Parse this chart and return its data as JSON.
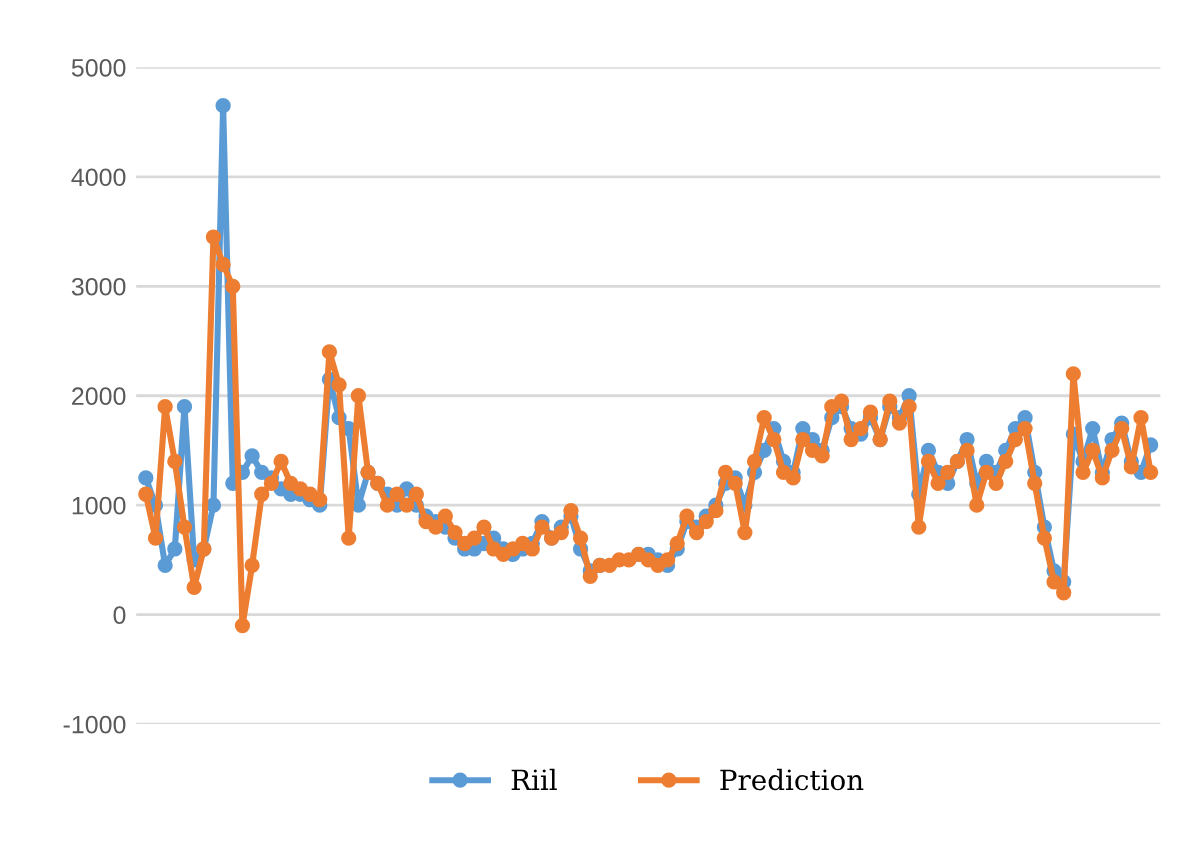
{
  "chart_data": {
    "type": "line",
    "categories": [
      null,
      null,
      null,
      null,
      null,
      null,
      null,
      null,
      null,
      null,
      null,
      null,
      null,
      null,
      null,
      null,
      null,
      null,
      null,
      null,
      null,
      null,
      null,
      null,
      null,
      null,
      null,
      null,
      null,
      null,
      null,
      null,
      null,
      null,
      null,
      null,
      null,
      null,
      null,
      null,
      null,
      null,
      null,
      null,
      null,
      null,
      null,
      null,
      null,
      null,
      null,
      null,
      null,
      null,
      null,
      null,
      null,
      null,
      null,
      null,
      null,
      null,
      null,
      null,
      null,
      null,
      null,
      null,
      null,
      null,
      null,
      null,
      null,
      null,
      null,
      null,
      null,
      null,
      null,
      null,
      null,
      null,
      null,
      null,
      null,
      null,
      null,
      null,
      null,
      null,
      null,
      null,
      null,
      null,
      null,
      null,
      null,
      null,
      null,
      null,
      null,
      null,
      null,
      null,
      null
    ],
    "series": [
      {
        "name": "Riil",
        "color": "#5b9bd5",
        "values": [
          1250,
          1000,
          450,
          600,
          1900,
          500,
          600,
          1000,
          4650,
          1200,
          1300,
          1450,
          1300,
          1250,
          1150,
          1100,
          1100,
          1050,
          1000,
          2150,
          1800,
          1700,
          1000,
          1300,
          1200,
          1100,
          1000,
          1150,
          1000,
          900,
          850,
          800,
          700,
          600,
          600,
          650,
          700,
          600,
          550,
          600,
          650,
          850,
          700,
          800,
          900,
          600,
          400,
          450,
          null,
          null,
          null,
          550,
          550,
          500,
          450,
          600,
          850,
          800,
          900,
          1000,
          1200,
          1250,
          1000,
          1300,
          1500,
          1700,
          1400,
          1300,
          1700,
          1600,
          1500,
          1800,
          1900,
          1700,
          1650,
          1800,
          1600,
          1900,
          1800,
          2000,
          1100,
          1500,
          1300,
          1200,
          1400,
          1600,
          1200,
          1400,
          1300,
          1500,
          1700,
          1800,
          1300,
          800,
          400,
          300,
          1650,
          1400,
          1700,
          1300,
          1600,
          1750,
          1400,
          1300,
          1550
        ]
      },
      {
        "name": "Prediction",
        "color": "#ed7d31",
        "values": [
          1100,
          700,
          1900,
          1400,
          800,
          250,
          600,
          3450,
          3200,
          3000,
          -100,
          450,
          1100,
          1200,
          1400,
          1200,
          1150,
          1100,
          1050,
          2400,
          2100,
          700,
          2000,
          1300,
          1200,
          1000,
          1100,
          1000,
          1100,
          850,
          800,
          900,
          750,
          650,
          700,
          800,
          600,
          550,
          600,
          650,
          600,
          800,
          700,
          750,
          950,
          700,
          350,
          450,
          450,
          500,
          500,
          550,
          500,
          450,
          500,
          650,
          900,
          750,
          850,
          950,
          1300,
          1200,
          750,
          1400,
          1800,
          1600,
          1300,
          1250,
          1600,
          1500,
          1450,
          1900,
          1950,
          1600,
          1700,
          1850,
          1600,
          1950,
          1750,
          1900,
          800,
          1400,
          1200,
          1300,
          1400,
          1500,
          1000,
          1300,
          1200,
          1400,
          1600,
          1700,
          1200,
          700,
          300,
          200,
          2200,
          1300,
          1500,
          1250,
          1500,
          1700,
          1350,
          1800,
          1300
        ]
      }
    ],
    "ylim": [
      -1000,
      5000
    ],
    "yticks": [
      -1000,
      0,
      1000,
      2000,
      3000,
      4000,
      5000
    ],
    "grid": "y",
    "legend": "bottom",
    "marker": "circle",
    "line_style": "solid",
    "tick_labels": "y"
  }
}
